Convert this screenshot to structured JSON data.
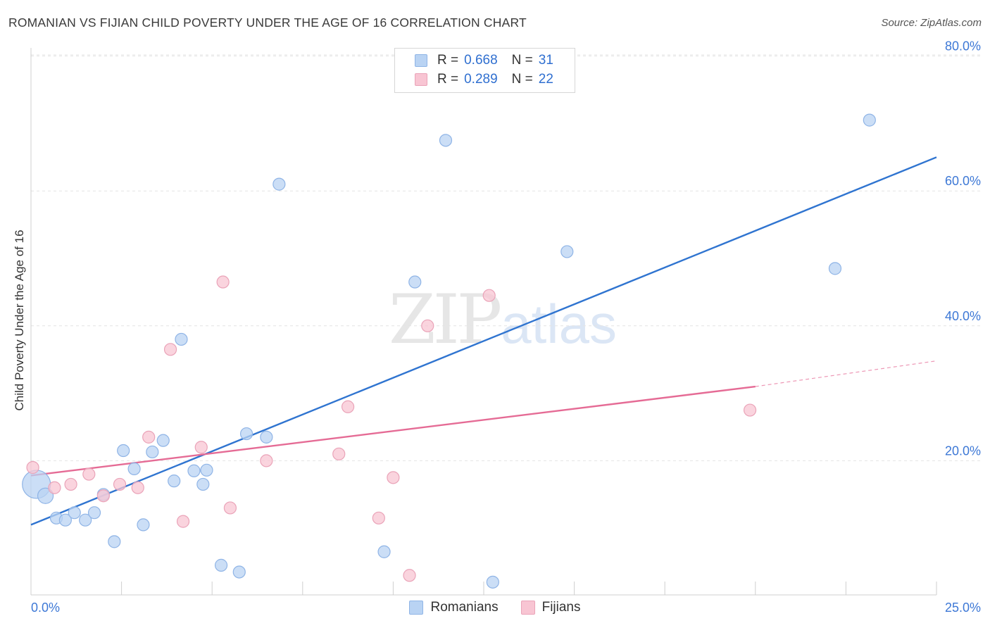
{
  "header": {
    "title": "ROMANIAN VS FIJIAN CHILD POVERTY UNDER THE AGE OF 16 CORRELATION CHART",
    "source": "Source: ZipAtlas.com"
  },
  "watermark": {
    "zip": "ZIP",
    "atlas": "atlas"
  },
  "legend": {
    "r_label": "R =",
    "n_label": "N =",
    "rows": [
      {
        "r": "0.668",
        "n": "31"
      },
      {
        "r": "0.289",
        "n": "22"
      }
    ]
  },
  "bottom_legend": {
    "romanians": "Romanians",
    "fijians": "Fijians"
  },
  "colors": {
    "blue_fill": "#b9d3f3",
    "blue_stroke": "#8fb4e6",
    "blue_line": "#2f74d0",
    "pink_fill": "#f8c5d3",
    "pink_stroke": "#eaa3b8",
    "pink_line": "#e56b95",
    "tick_label": "#3d78d6",
    "grid": "#e4e4e4"
  },
  "chart_data": {
    "type": "scatter",
    "title": "ROMANIAN VS FIJIAN CHILD POVERTY UNDER THE AGE OF 16 CORRELATION CHART",
    "xlabel": "",
    "ylabel": "Child Poverty Under the Age of 16",
    "xlim": [
      0,
      25
    ],
    "ylim": [
      0,
      82
    ],
    "x_tick_labels": [
      "0.0%",
      "25.0%"
    ],
    "y_ticks": [
      20,
      40,
      60,
      80
    ],
    "y_tick_labels": [
      "20.0%",
      "40.0%",
      "60.0%",
      "80.0%"
    ],
    "grid": true,
    "legend_position": "top-center",
    "series": [
      {
        "name": "Romanians",
        "R": 0.668,
        "N": 31,
        "points": [
          [
            0.15,
            16.5,
            "large"
          ],
          [
            0.4,
            14.8
          ],
          [
            0.7,
            11.5
          ],
          [
            0.95,
            11.2
          ],
          [
            1.2,
            12.3
          ],
          [
            1.5,
            11.2
          ],
          [
            1.75,
            12.3
          ],
          [
            2.0,
            15.0
          ],
          [
            2.3,
            8.0
          ],
          [
            2.55,
            21.5
          ],
          [
            2.85,
            18.8
          ],
          [
            3.1,
            10.5
          ],
          [
            3.35,
            21.3
          ],
          [
            3.65,
            23.0
          ],
          [
            3.95,
            17.0
          ],
          [
            4.15,
            38.0
          ],
          [
            4.5,
            18.5
          ],
          [
            4.75,
            16.5
          ],
          [
            4.85,
            18.6
          ],
          [
            5.25,
            4.5
          ],
          [
            5.75,
            3.5
          ],
          [
            5.95,
            24.0
          ],
          [
            6.5,
            23.5
          ],
          [
            6.85,
            61.0
          ],
          [
            9.75,
            6.5
          ],
          [
            10.6,
            46.5
          ],
          [
            11.45,
            67.5
          ],
          [
            12.75,
            2.0
          ],
          [
            14.8,
            51.0
          ],
          [
            22.2,
            48.5
          ],
          [
            23.15,
            70.5
          ]
        ],
        "trend": {
          "x": [
            0,
            25
          ],
          "y": [
            10.5,
            65.0
          ]
        }
      },
      {
        "name": "Fijians",
        "R": 0.289,
        "N": 22,
        "points": [
          [
            0.05,
            19.0
          ],
          [
            0.65,
            16.0
          ],
          [
            1.1,
            16.5
          ],
          [
            1.6,
            18.0
          ],
          [
            2.0,
            14.8
          ],
          [
            2.45,
            16.5
          ],
          [
            2.95,
            16.0
          ],
          [
            3.25,
            23.5
          ],
          [
            3.85,
            36.5
          ],
          [
            4.2,
            11.0
          ],
          [
            4.7,
            22.0
          ],
          [
            5.3,
            46.5
          ],
          [
            5.5,
            13.0
          ],
          [
            6.5,
            20.0
          ],
          [
            8.5,
            21.0
          ],
          [
            8.75,
            28.0
          ],
          [
            9.6,
            11.5
          ],
          [
            10.0,
            17.5
          ],
          [
            10.45,
            3.0
          ],
          [
            10.95,
            40.0
          ],
          [
            12.65,
            44.5
          ],
          [
            19.85,
            27.5
          ]
        ],
        "trend": {
          "x": [
            0,
            20
          ],
          "y": [
            17.8,
            31.0
          ]
        },
        "trend_dashed_extension": {
          "x": [
            20,
            25
          ],
          "y": [
            31.0,
            34.8
          ]
        }
      }
    ]
  }
}
